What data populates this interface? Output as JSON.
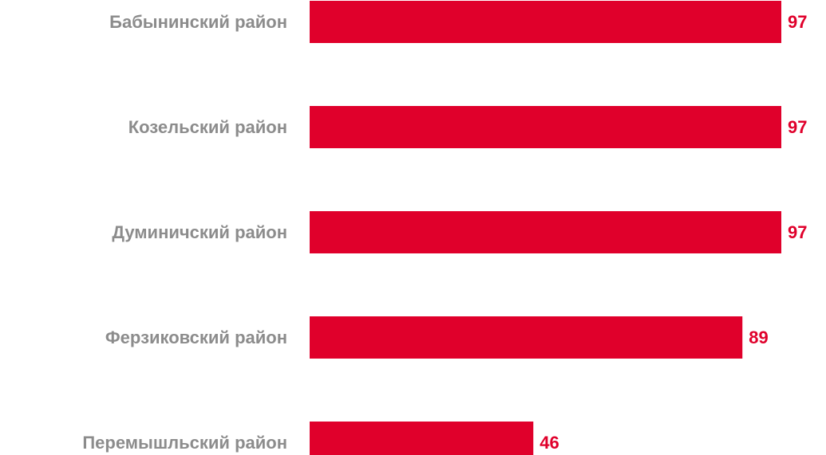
{
  "colors": {
    "bar": "#e0002b",
    "category_text": "#8c8c8c",
    "value_text": "#e0002b"
  },
  "chart_data": {
    "type": "bar",
    "orientation": "horizontal",
    "categories": [
      "Бабынинский район",
      "Козельский район",
      "Думиничский район",
      "Ферзиковский район",
      "Перемышльский район"
    ],
    "values": [
      97,
      97,
      97,
      89,
      46
    ],
    "data_labels": [
      "97",
      "97",
      "97",
      "89",
      "46"
    ],
    "title": "",
    "xlabel": "",
    "ylabel": "",
    "xlim": [
      0,
      97
    ],
    "grid": false,
    "legend": "none"
  }
}
